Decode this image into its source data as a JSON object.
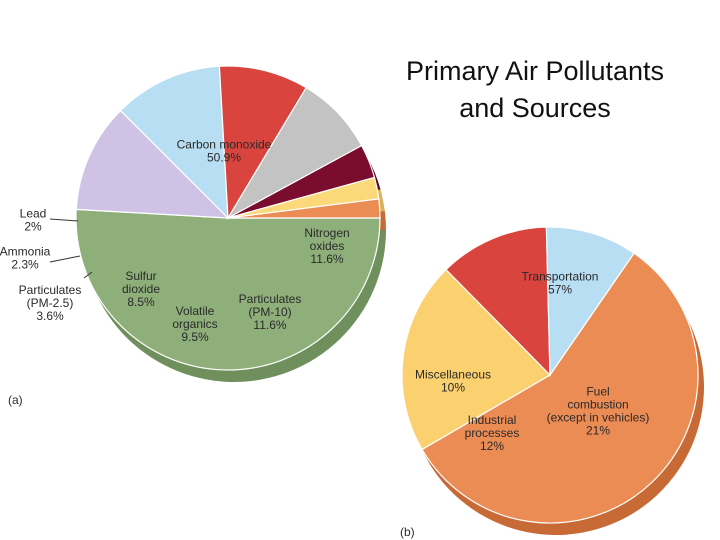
{
  "title": {
    "line1": "Primary Air Pollutants",
    "line2": "and Sources"
  },
  "chart_data": [
    {
      "type": "pie",
      "panel_label": "(a)",
      "slices": [
        {
          "name": "Carbon monoxide",
          "value": 50.9,
          "lines": [
            "Carbon monoxide",
            "50.9%"
          ],
          "color": "#8faf7a",
          "side": "#6f8f5c"
        },
        {
          "name": "Nitrogen oxides",
          "value": 11.6,
          "lines": [
            "Nitrogen",
            "oxides",
            "11.6%"
          ],
          "color": "#cfc2e4",
          "side": "#a493c9"
        },
        {
          "name": "Particulates (PM-10)",
          "value": 11.6,
          "lines": [
            "Particulates",
            "(PM-10)",
            "11.6%"
          ],
          "color": "#b7def2",
          "side": "#5aaee0"
        },
        {
          "name": "Volatile organics",
          "value": 9.5,
          "lines": [
            "Volatile",
            "organics",
            "9.5%"
          ],
          "color": "#d9443f",
          "side": "#b32a2a"
        },
        {
          "name": "Sulfur dioxide",
          "value": 8.5,
          "lines": [
            "Sulfur",
            "dioxide",
            "8.5%"
          ],
          "color": "#c3c3c3",
          "side": "#9a9a9a"
        },
        {
          "name": "Particulates (PM-2.5)",
          "value": 3.6,
          "lines": [
            "Particulates",
            "(PM-2.5)",
            "3.6%"
          ],
          "color": "#7a0d2e",
          "side": "#5a0a20"
        },
        {
          "name": "Ammonia",
          "value": 2.3,
          "lines": [
            "Ammonia",
            "2.3%"
          ],
          "color": "#fbd97a",
          "side": "#d9b25a"
        },
        {
          "name": "Lead",
          "value": 2,
          "lines": [
            "Lead",
            "2%"
          ],
          "color": "#ec8c55",
          "side": "#c86a36"
        }
      ]
    },
    {
      "type": "pie",
      "panel_label": "(b)",
      "slices": [
        {
          "name": "Transportation",
          "value": 57,
          "lines": [
            "Transportation",
            "57%"
          ],
          "color": "#ec8c55",
          "side": "#c86a36"
        },
        {
          "name": "Fuel combustion (except in vehicles)",
          "value": 21,
          "lines": [
            "Fuel",
            "combustion",
            "(except in vehicles)",
            "21%"
          ],
          "color": "#fbd06e",
          "side": "#e0a945"
        },
        {
          "name": "Industrial processes",
          "value": 12,
          "lines": [
            "Industrial",
            "processes",
            "12%"
          ],
          "color": "#d9443f",
          "side": "#b32a2a"
        },
        {
          "name": "Miscellaneous",
          "value": 10,
          "lines": [
            "Miscellaneous",
            "10%"
          ],
          "color": "#b7def2",
          "side": "#5aaee0"
        }
      ]
    }
  ]
}
